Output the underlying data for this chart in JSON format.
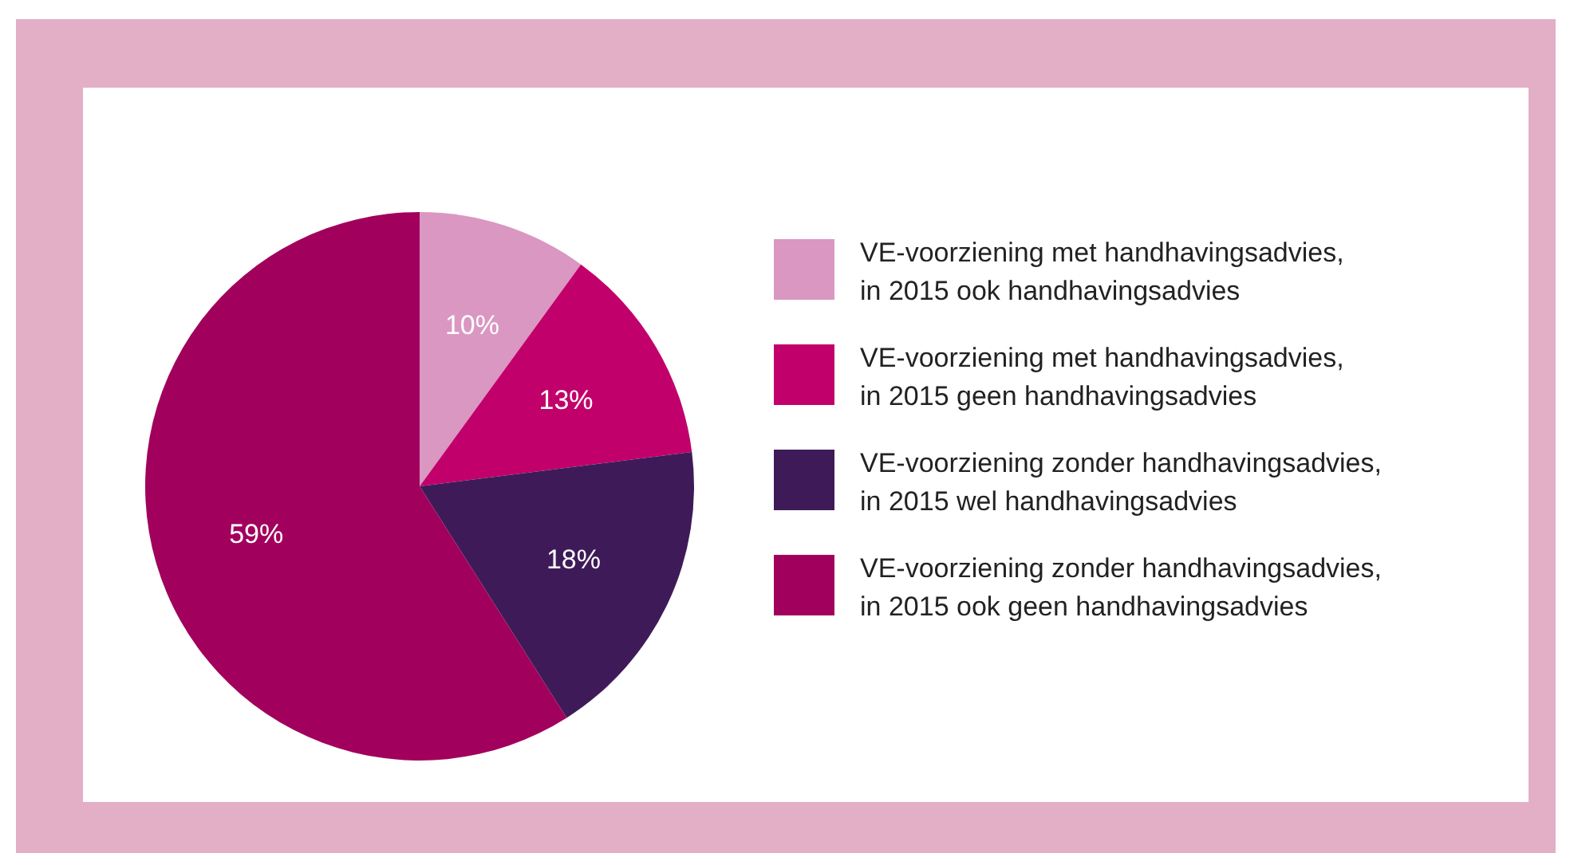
{
  "chart_data": {
    "type": "pie",
    "categories": [
      "VE-voorziening met handhavingsadvies, in 2015 ook handhavingsadvies",
      "VE-voorziening met handhavingsadvies, in 2015 geen handhavingsadvies",
      "VE-voorziening zonder handhavingsadvies, in 2015 wel handhavingsadvies",
      "VE-voorziening zonder handhavingsadvies, in 2015 ook geen handhavingsadvies"
    ],
    "values": [
      10,
      13,
      18,
      59
    ],
    "value_labels": [
      "10%",
      "13%",
      "18%",
      "59%"
    ],
    "colors": [
      "#da97c1",
      "#c2006b",
      "#3e1b58",
      "#a1005c"
    ],
    "legend": "right"
  }
}
